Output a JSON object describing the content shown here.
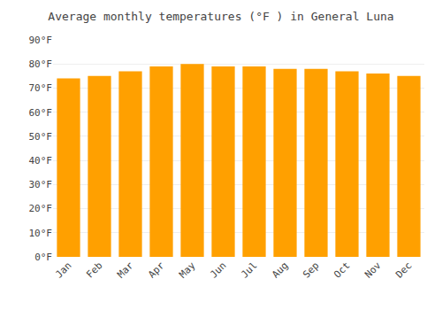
{
  "chart_data": {
    "type": "bar",
    "title": "Average monthly temperatures (°F ) in General Luna",
    "categories": [
      "Jan",
      "Feb",
      "Mar",
      "Apr",
      "May",
      "Jun",
      "Jul",
      "Aug",
      "Sep",
      "Oct",
      "Nov",
      "Dec"
    ],
    "values": [
      74,
      75,
      77,
      79,
      80,
      79,
      79,
      78,
      78,
      77,
      76,
      75
    ],
    "color": "#FFA000",
    "ylim": [
      0,
      90
    ],
    "yticks": [
      {
        "value": 0,
        "label": "0°F"
      },
      {
        "value": 10,
        "label": "10°F"
      },
      {
        "value": 20,
        "label": "20°F"
      },
      {
        "value": 30,
        "label": "30°F"
      },
      {
        "value": 40,
        "label": "40°F"
      },
      {
        "value": 50,
        "label": "50°F"
      },
      {
        "value": 60,
        "label": "60°F"
      },
      {
        "value": 70,
        "label": "70°F"
      },
      {
        "value": 80,
        "label": "80°F"
      },
      {
        "value": 90,
        "label": "90°F"
      }
    ],
    "grid": true
  }
}
